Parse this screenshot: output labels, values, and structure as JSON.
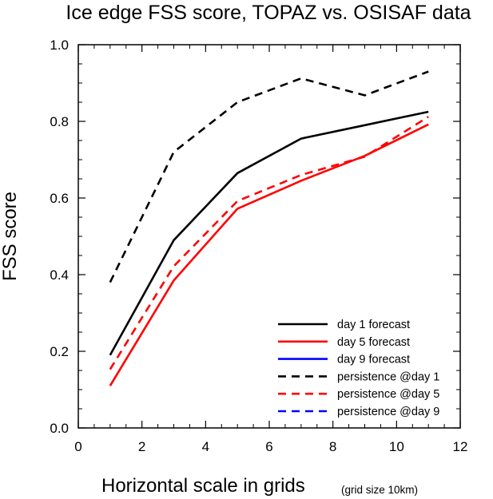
{
  "chart_data": {
    "type": "line",
    "title": "Ice edge FSS score, TOPAZ vs. OSISAF data",
    "xlabel": "Horizontal scale in grids",
    "xlabel_note": "(grid size 10km)",
    "ylabel": "FSS score",
    "xlim": [
      0,
      12
    ],
    "ylim": [
      0,
      1.0
    ],
    "xticks": [
      0,
      2,
      4,
      6,
      8,
      10,
      12
    ],
    "xtick_labels": [
      "0",
      "2",
      "4",
      "6",
      "8",
      "10",
      "12"
    ],
    "yticks": [
      0,
      0.2,
      0.4,
      0.6,
      0.8,
      1.0
    ],
    "ytick_labels": [
      "0.0",
      "0.2",
      "0.4",
      "0.6",
      "0.8",
      "1.0"
    ],
    "grid": false,
    "legend_position": "bottom-right",
    "series": [
      {
        "name": "day 1 forecast",
        "color": "#000000",
        "dash": "solid",
        "x": [
          1,
          3,
          5,
          7,
          9,
          11
        ],
        "values": [
          0.19,
          0.49,
          0.665,
          0.755,
          0.79,
          0.825
        ]
      },
      {
        "name": "day 5 forecast",
        "color": "#ff0000",
        "dash": "solid",
        "x": [
          1,
          3,
          5,
          7,
          9,
          11
        ],
        "values": [
          0.11,
          0.385,
          0.572,
          0.645,
          0.71,
          0.792
        ]
      },
      {
        "name": "day 9 forecast",
        "color": "#0000ff",
        "dash": "solid",
        "x": [],
        "values": []
      },
      {
        "name": "persistence @day 1",
        "color": "#000000",
        "dash": "dashed",
        "x": [
          1,
          3,
          5,
          7,
          9,
          11
        ],
        "values": [
          0.38,
          0.72,
          0.85,
          0.912,
          0.868,
          0.93
        ]
      },
      {
        "name": "persistence @day 5",
        "color": "#ff0000",
        "dash": "dashed",
        "x": [
          1,
          3,
          5,
          7,
          9,
          11
        ],
        "values": [
          0.153,
          0.422,
          0.592,
          0.66,
          0.708,
          0.812
        ]
      },
      {
        "name": "persistence @day 9",
        "color": "#0000ff",
        "dash": "dashed",
        "x": [],
        "values": []
      }
    ]
  }
}
